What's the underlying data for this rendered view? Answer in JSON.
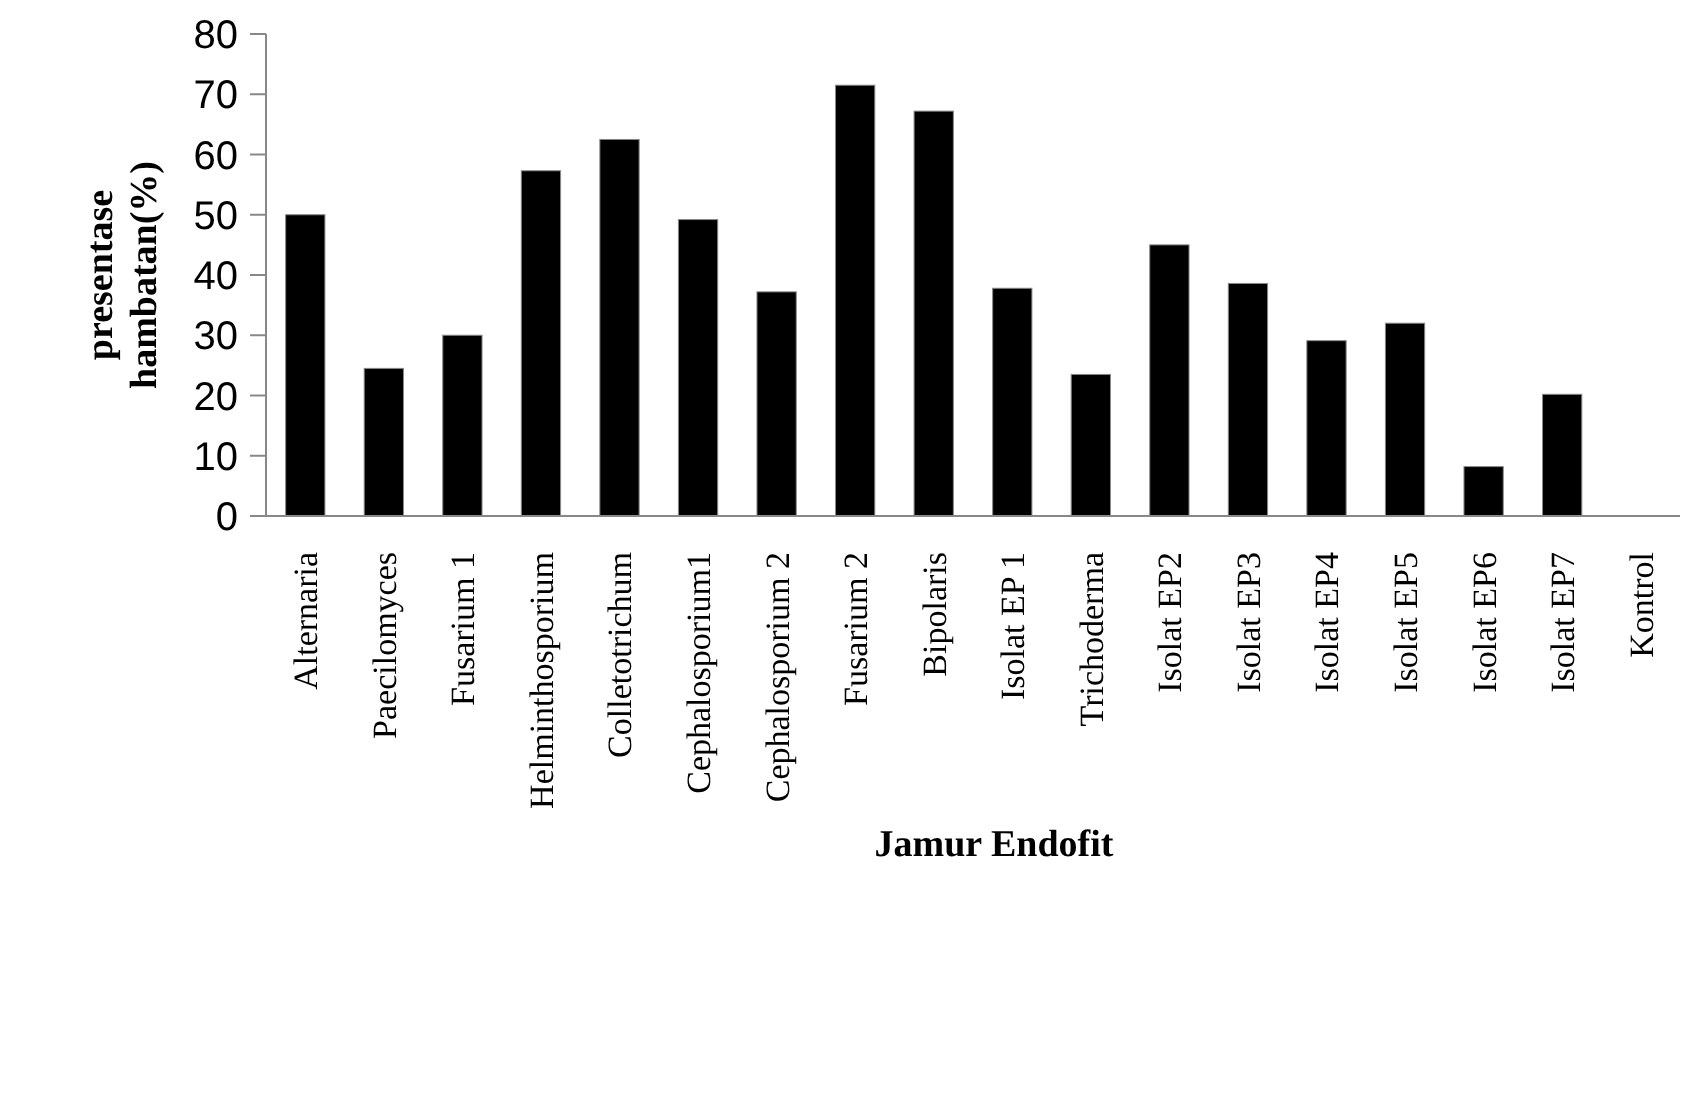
{
  "chart_data": {
    "type": "bar",
    "xlabel": "Jamur Endofit",
    "ylabel": "presentase hambatan(%)",
    "categories": [
      "Alternaria",
      "Paecilomyces",
      "Fusarium 1",
      "Helminthosporium",
      "Colletotrichum",
      "Cephalosporium1",
      "Cephalosporium 2",
      "Fusarium 2",
      "Bipolaris",
      "Isolat EP 1",
      "Trichoderma",
      "Isolat EP2",
      "Isolat EP3",
      "Isolat EP4",
      "Isolat EP5",
      "Isolat EP6",
      "Isolat EP7",
      "Kontrol"
    ],
    "values": [
      50,
      24.5,
      30,
      57.3,
      62.5,
      49.2,
      37.2,
      71.5,
      67.2,
      37.8,
      23.5,
      45,
      38.6,
      29.1,
      32,
      8.2,
      20.2,
      0
    ],
    "color": "#000000",
    "ylim": [
      0,
      80
    ],
    "yticks": [
      0,
      10,
      20,
      30,
      40,
      50,
      60,
      70,
      80
    ],
    "grid": false
  }
}
